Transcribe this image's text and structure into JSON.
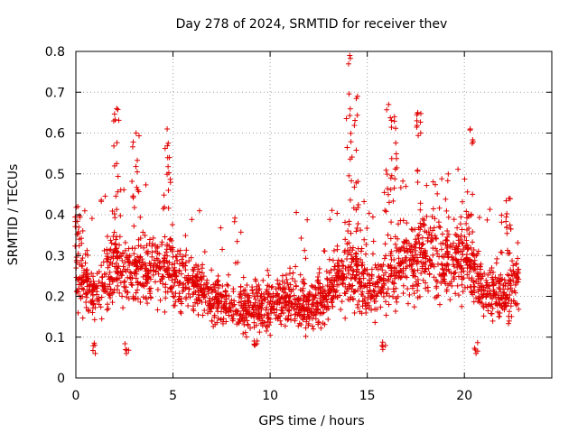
{
  "chart_data": {
    "type": "scatter",
    "title": "Day 278 of 2024, SRMTID for receiver thev",
    "xlabel": "GPS time / hours",
    "ylabel": "SRMTID / TECUs",
    "xlim": [
      0,
      24.5
    ],
    "ylim": [
      0,
      0.8
    ],
    "xticks": [
      0,
      5,
      10,
      15,
      20
    ],
    "yticks": [
      0,
      0.1,
      0.2,
      0.3,
      0.4,
      0.5,
      0.6,
      0.7,
      0.8
    ],
    "xtick_labels": [
      "0",
      "5",
      "10",
      "15",
      "20"
    ],
    "ytick_labels": [
      "0",
      "0.1",
      "0.2",
      "0.3",
      "0.4",
      "0.5",
      "0.6",
      "0.7",
      "0.8"
    ],
    "grid": true,
    "marker": "+",
    "color": "#e00000",
    "x_data_range": [
      0,
      22.8
    ],
    "baseline": [
      [
        0,
        0.27
      ],
      [
        1,
        0.2
      ],
      [
        2,
        0.28
      ],
      [
        3,
        0.26
      ],
      [
        4,
        0.27
      ],
      [
        5,
        0.26
      ],
      [
        6,
        0.22
      ],
      [
        7,
        0.2
      ],
      [
        8,
        0.18
      ],
      [
        9,
        0.17
      ],
      [
        10,
        0.18
      ],
      [
        11,
        0.2
      ],
      [
        12,
        0.17
      ],
      [
        13,
        0.21
      ],
      [
        14,
        0.27
      ],
      [
        15,
        0.22
      ],
      [
        16,
        0.24
      ],
      [
        17,
        0.29
      ],
      [
        18,
        0.3
      ],
      [
        19,
        0.29
      ],
      [
        20,
        0.3
      ],
      [
        21,
        0.21
      ],
      [
        22,
        0.2
      ],
      [
        22.8,
        0.24
      ]
    ],
    "peaks": [
      {
        "x": 0.1,
        "y": 0.42
      },
      {
        "x": 2.1,
        "y": 0.66
      },
      {
        "x": 3.1,
        "y": 0.6
      },
      {
        "x": 4.7,
        "y": 0.61
      },
      {
        "x": 14.1,
        "y": 0.79
      },
      {
        "x": 14.5,
        "y": 0.69
      },
      {
        "x": 16.1,
        "y": 0.67
      },
      {
        "x": 16.4,
        "y": 0.64
      },
      {
        "x": 17.6,
        "y": 0.65
      },
      {
        "x": 20.3,
        "y": 0.61
      },
      {
        "x": 22.3,
        "y": 0.44
      }
    ],
    "minima": [
      {
        "x": 1.0,
        "y": 0.06
      },
      {
        "x": 2.6,
        "y": 0.06
      },
      {
        "x": 9.2,
        "y": 0.08
      },
      {
        "x": 15.8,
        "y": 0.07
      },
      {
        "x": 20.6,
        "y": 0.06
      }
    ]
  }
}
